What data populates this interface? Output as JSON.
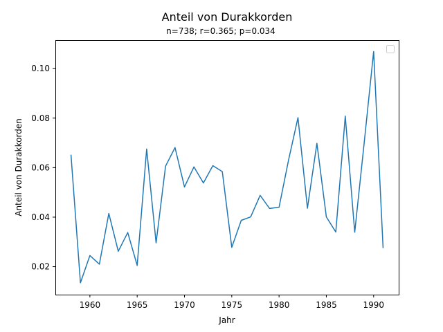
{
  "chart_data": {
    "type": "line",
    "title": "Anteil von Durakkorden",
    "subtitle": "n=738; r=0.365; p=0.034",
    "xlabel": "Jahr",
    "ylabel": "Anteil von Durakkorden",
    "xlim": [
      1956.35,
      1992.65
    ],
    "ylim": [
      0.0087,
      0.1115
    ],
    "xticks": [
      1960,
      1965,
      1970,
      1975,
      1980,
      1985,
      1990
    ],
    "yticks": [
      0.02,
      0.04,
      0.06,
      0.08,
      0.1
    ],
    "ytick_labels": [
      "0.02",
      "0.04",
      "0.06",
      "0.08",
      "0.10"
    ],
    "grid": false,
    "legend": {
      "location": "top-right",
      "entries": []
    },
    "series": [
      {
        "color": "#1f77b4",
        "x": [
          1958,
          1959,
          1960,
          1961,
          1962,
          1963,
          1964,
          1965,
          1966,
          1967,
          1968,
          1969,
          1970,
          1971,
          1972,
          1973,
          1974,
          1975,
          1976,
          1977,
          1978,
          1979,
          1980,
          1981,
          1982,
          1983,
          1984,
          1985,
          1986,
          1987,
          1988,
          1989,
          1990,
          1991
        ],
        "y": [
          0.0652,
          0.0135,
          0.0245,
          0.021,
          0.0415,
          0.0262,
          0.0338,
          0.0205,
          0.0675,
          0.0296,
          0.0606,
          0.0681,
          0.0522,
          0.0603,
          0.0538,
          0.0608,
          0.0584,
          0.0278,
          0.0387,
          0.0401,
          0.0488,
          0.0435,
          0.044,
          0.063,
          0.0802,
          0.0436,
          0.0698,
          0.0401,
          0.034,
          0.0808,
          0.0339,
          0.07,
          0.1069,
          0.0275
        ]
      }
    ]
  }
}
